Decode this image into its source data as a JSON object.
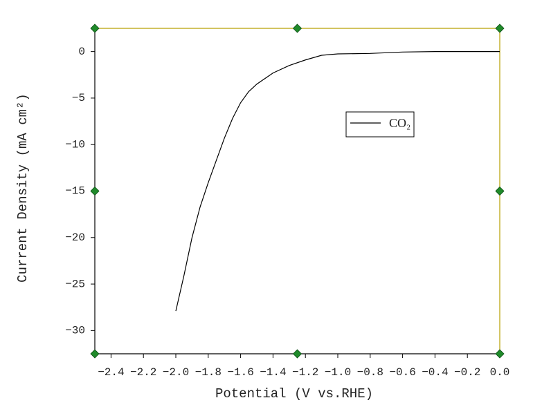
{
  "chart_data": {
    "type": "line",
    "xlabel": "Potential (V vs.RHE)",
    "ylabel": "Current Density (mA cm²)",
    "xlim": [
      -2.5,
      0
    ],
    "ylim": [
      -32.5,
      2.5
    ],
    "xticks": [
      {
        "value": -2.4,
        "label": "−2.4"
      },
      {
        "value": -2.2,
        "label": "−2.2"
      },
      {
        "value": -2.0,
        "label": "−2.0"
      },
      {
        "value": -1.8,
        "label": "−1.8"
      },
      {
        "value": -1.6,
        "label": "−1.6"
      },
      {
        "value": -1.4,
        "label": "−1.4"
      },
      {
        "value": -1.2,
        "label": "−1.2"
      },
      {
        "value": -1.0,
        "label": "−1.0"
      },
      {
        "value": -0.8,
        "label": "−0.8"
      },
      {
        "value": -0.6,
        "label": "−0.6"
      },
      {
        "value": -0.4,
        "label": "−0.4"
      },
      {
        "value": -0.2,
        "label": "−0.2"
      },
      {
        "value": 0,
        "label": "0.0"
      }
    ],
    "yticks": [
      0,
      {
        "value": -5,
        "label": "−5"
      },
      {
        "value": -10,
        "label": "−10"
      },
      {
        "value": -15,
        "label": "−15"
      },
      {
        "value": -20,
        "label": "−20"
      },
      {
        "value": -25,
        "label": "−25"
      },
      {
        "value": -30,
        "label": "−30"
      }
    ],
    "x": [
      -2.0,
      -1.95,
      -1.9,
      -1.85,
      -1.8,
      -1.75,
      -1.7,
      -1.65,
      -1.6,
      -1.55,
      -1.5,
      -1.4,
      -1.3,
      -1.2,
      -1.1,
      -1.0,
      -0.8,
      -0.6,
      -0.4,
      -0.2,
      0
    ],
    "series": [
      {
        "name": "CO₂",
        "color": "#000000",
        "values": [
          -27.9,
          -24.1,
          -20.0,
          -16.7,
          -14.1,
          -11.7,
          -9.3,
          -7.2,
          -5.5,
          -4.3,
          -3.5,
          -2.3,
          -1.5,
          -0.9,
          -0.4,
          -0.25,
          -0.2,
          -0.05,
          0,
          0,
          0
        ]
      }
    ]
  }
}
